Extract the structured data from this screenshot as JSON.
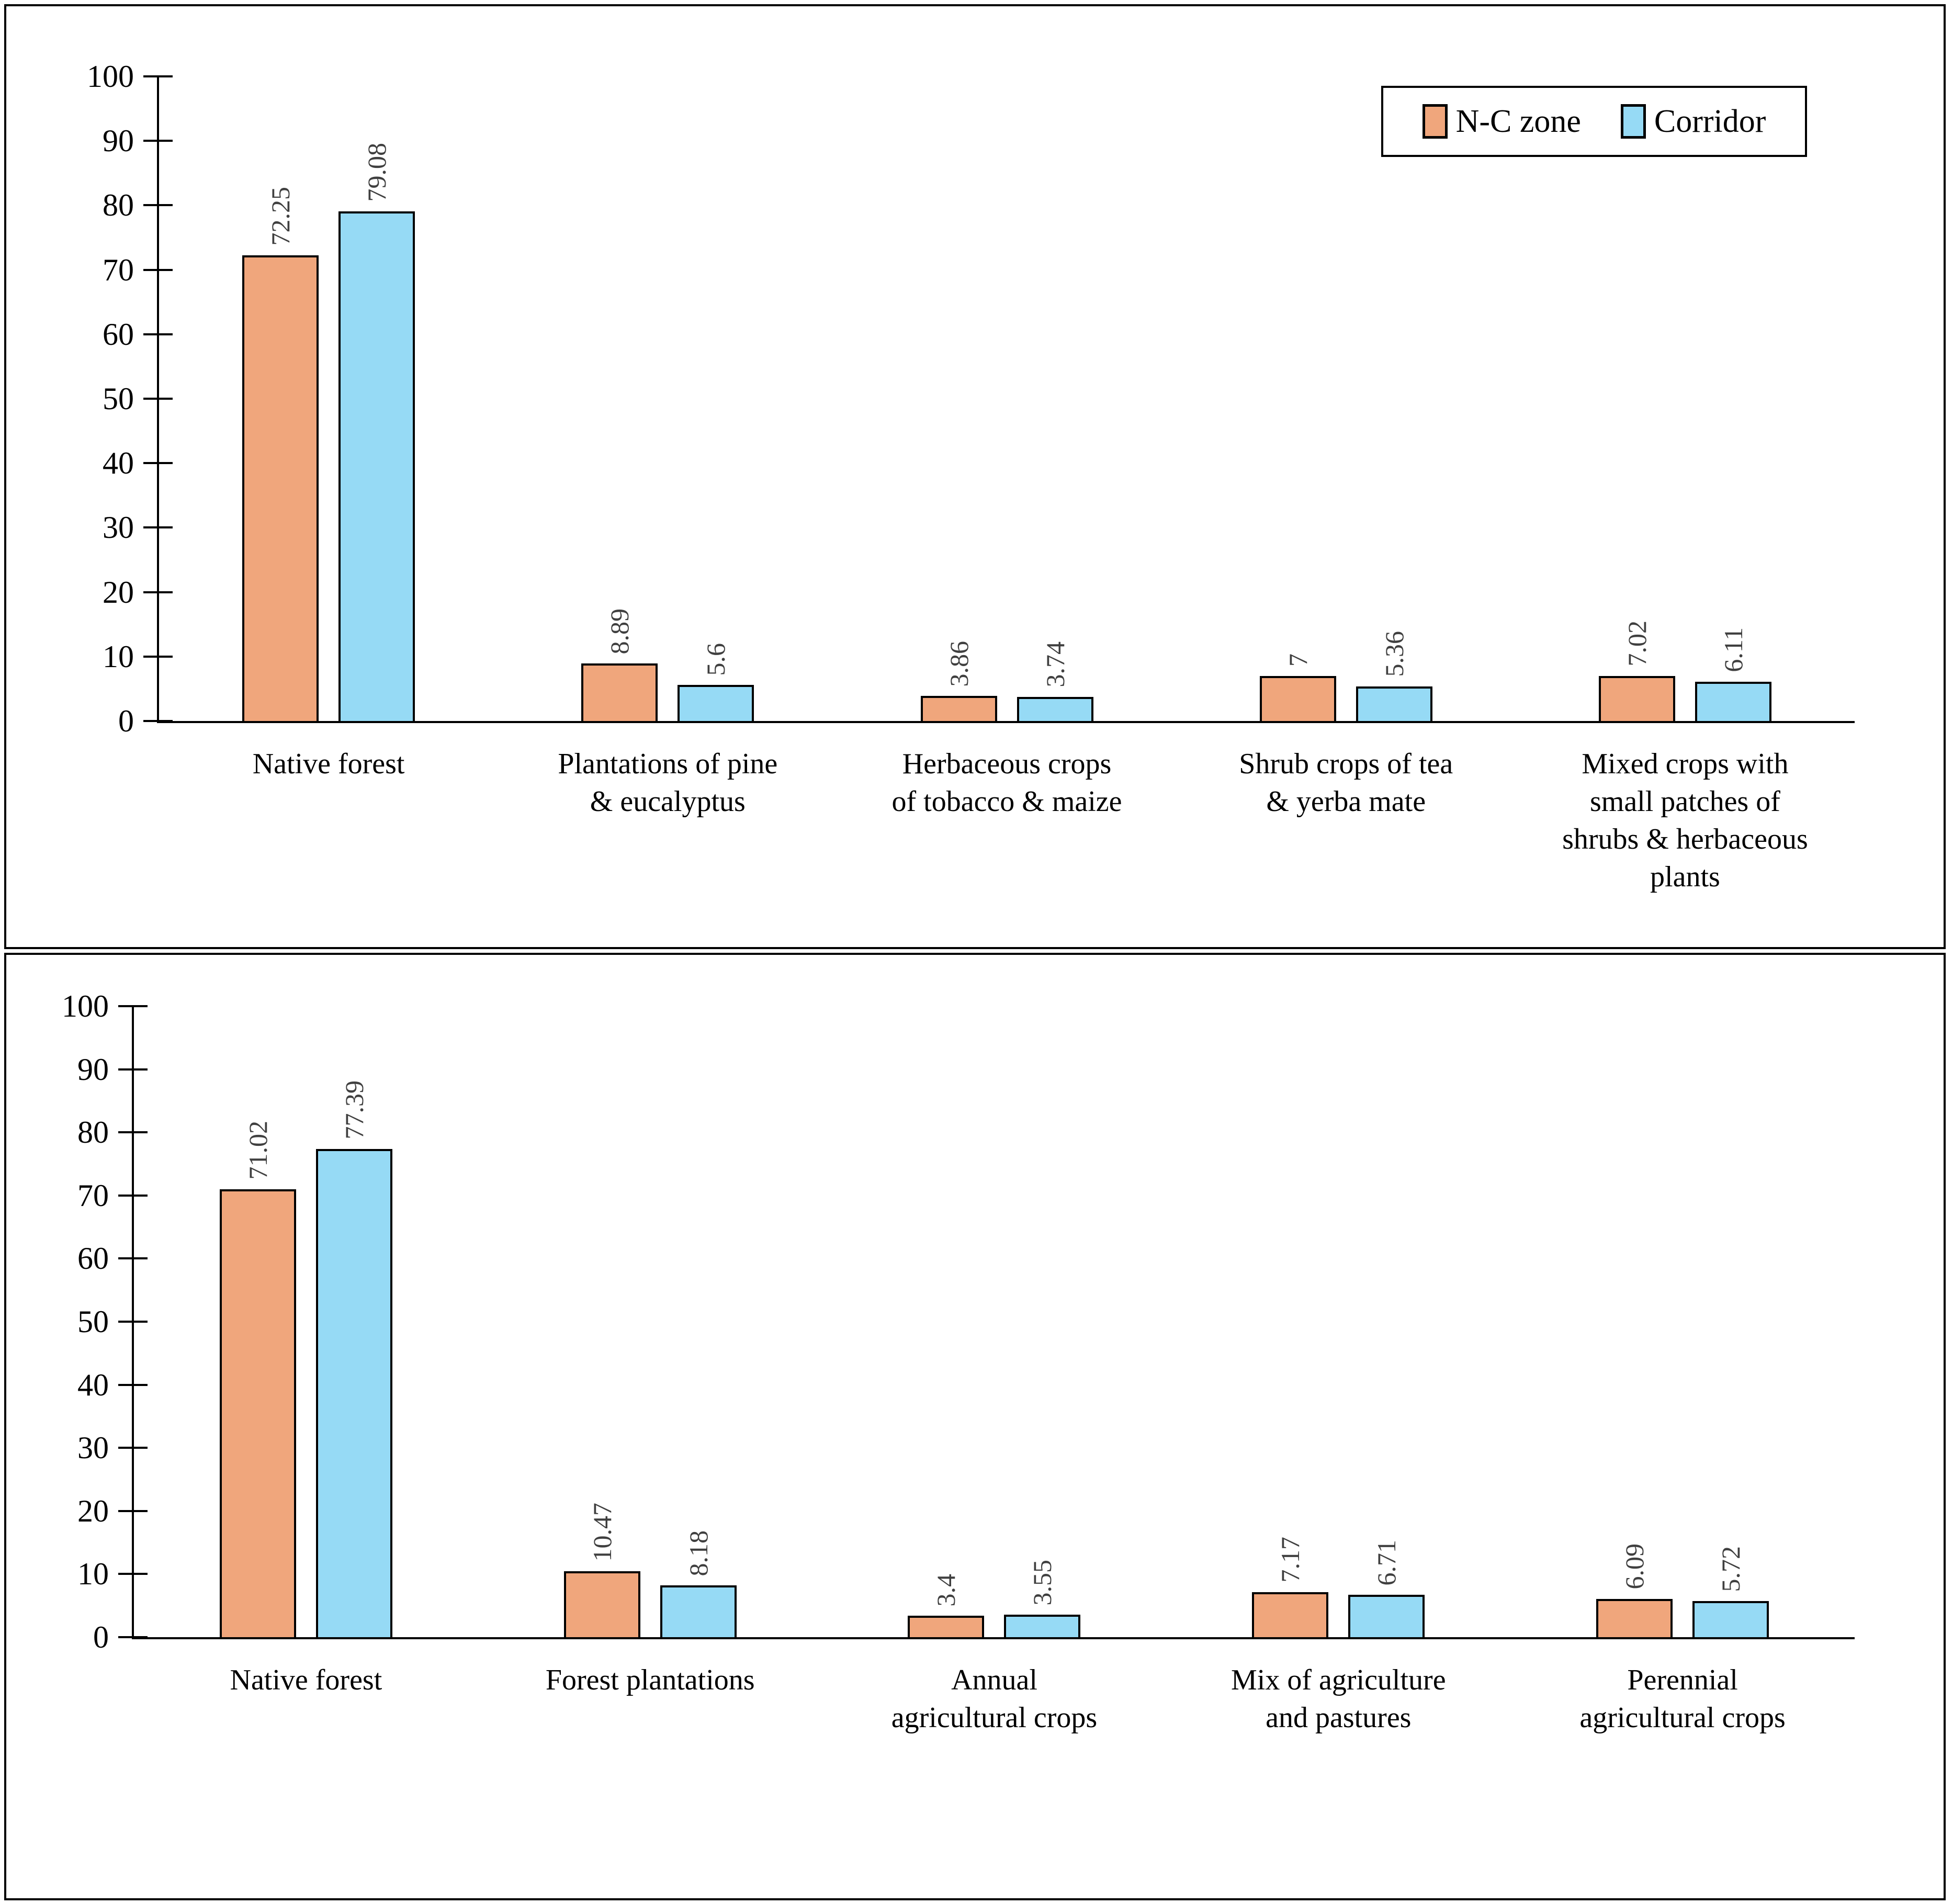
{
  "figure": {
    "background": "#FFFFFF",
    "panel_border_color": "#000000"
  },
  "styles": {
    "axis_color": "#000000",
    "bar_outline_color": "#000000",
    "value_label_color": "#3F3F3F",
    "text_color": "#000000",
    "nc_zone_color": "#F0A67C",
    "corridor_color": "#96DAF5"
  },
  "chart_data": [
    {
      "type": "bar",
      "panel": "top",
      "title": "",
      "xlabel": "",
      "ylabel": "",
      "grid": false,
      "y_axis": {
        "min": 0,
        "max": 100,
        "step": 10,
        "ticks": [
          0,
          10,
          20,
          30,
          40,
          50,
          60,
          70,
          80,
          90,
          100
        ]
      },
      "legend": {
        "show": true,
        "position": "top-right",
        "labels": [
          "N-C zone",
          "Corridor"
        ]
      },
      "categories": [
        {
          "lines": [
            "Native forest"
          ]
        },
        {
          "lines": [
            "Plantations of pine",
            "& eucalyptus"
          ]
        },
        {
          "lines": [
            "Herbaceous crops",
            "of tobacco & maize"
          ]
        },
        {
          "lines": [
            "Shrub crops of tea",
            "& yerba mate"
          ]
        },
        {
          "lines": [
            "Mixed crops with",
            "small patches of",
            "shrubs & herbaceous",
            "plants"
          ]
        }
      ],
      "series": [
        {
          "name": "N-C zone",
          "color": "#F0A67C",
          "values": [
            72.25,
            8.89,
            3.86,
            7,
            7.02
          ]
        },
        {
          "name": "Corridor",
          "color": "#96DAF5",
          "values": [
            79.08,
            5.6,
            3.74,
            5.36,
            6.11
          ]
        }
      ]
    },
    {
      "type": "bar",
      "panel": "bottom",
      "title": "",
      "xlabel": "",
      "ylabel": "",
      "grid": false,
      "y_axis": {
        "min": 0,
        "max": 100,
        "step": 10,
        "ticks": [
          0,
          10,
          20,
          30,
          40,
          50,
          60,
          70,
          80,
          90,
          100
        ]
      },
      "legend": {
        "show": false,
        "position": "",
        "labels": []
      },
      "categories": [
        {
          "lines": [
            "Native forest"
          ]
        },
        {
          "lines": [
            "Forest plantations"
          ]
        },
        {
          "lines": [
            "Annual",
            "agricultural crops"
          ]
        },
        {
          "lines": [
            "Mix of agriculture",
            "and pastures"
          ]
        },
        {
          "lines": [
            "Perennial",
            "agricultural crops"
          ]
        }
      ],
      "series": [
        {
          "name": "N-C zone",
          "color": "#F0A67C",
          "values": [
            71.02,
            10.47,
            3.4,
            7.17,
            6.09
          ]
        },
        {
          "name": "Corridor",
          "color": "#96DAF5",
          "values": [
            77.39,
            8.18,
            3.55,
            6.71,
            5.72
          ]
        }
      ]
    }
  ]
}
